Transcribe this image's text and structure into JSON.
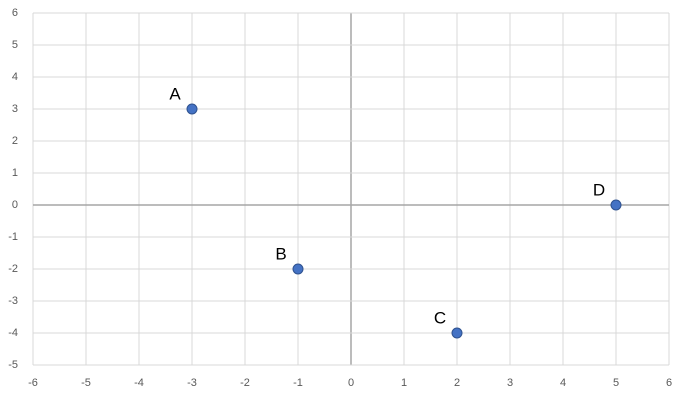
{
  "chart_data": {
    "type": "scatter",
    "series": [
      {
        "color": "#4472c4",
        "x": [
          -3,
          -1,
          2,
          5
        ],
        "values": [
          3,
          -2,
          -4,
          0
        ],
        "point_labels": [
          "A",
          "B",
          "C",
          "D"
        ]
      }
    ],
    "xlim": [
      -6,
      6
    ],
    "ylim": [
      -5,
      6
    ],
    "xticks": [
      -6,
      -5,
      -4,
      -3,
      -2,
      -1,
      0,
      1,
      2,
      3,
      4,
      5,
      6
    ],
    "yticks": [
      -5,
      -4,
      -3,
      -2,
      -1,
      0,
      1,
      2,
      3,
      4,
      5,
      6
    ],
    "grid": true
  }
}
